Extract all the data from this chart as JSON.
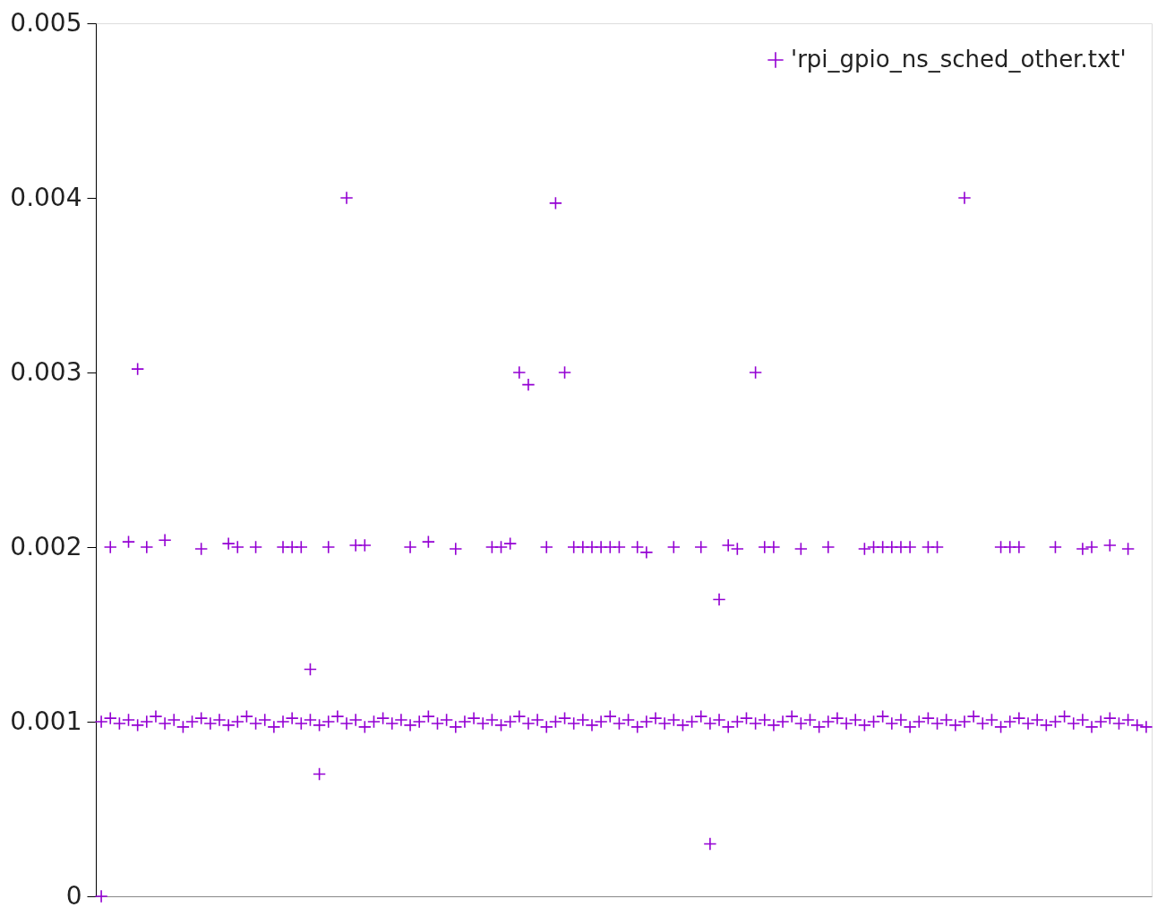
{
  "chart_data": {
    "type": "scatter",
    "categories": [
      null,
      null,
      null,
      null,
      null,
      null,
      null,
      null,
      null,
      null,
      null,
      null,
      null,
      null,
      null,
      null,
      null,
      null,
      null,
      null,
      null,
      null,
      null,
      null,
      null,
      null,
      null,
      null,
      null,
      null,
      null,
      null,
      null,
      null,
      null,
      null,
      null,
      null,
      null,
      null,
      null,
      null,
      null,
      null,
      null,
      null,
      null,
      null,
      null,
      null,
      null,
      null,
      null,
      null,
      null,
      null,
      null,
      null,
      null,
      null,
      null,
      null,
      null,
      null,
      null,
      null,
      null,
      null,
      null,
      null,
      null,
      null,
      null,
      null,
      null,
      null,
      null,
      null,
      null,
      null,
      null,
      null,
      null,
      null,
      null,
      null,
      null,
      null,
      null,
      null,
      null,
      null,
      null,
      null,
      null,
      null,
      null,
      null,
      null,
      null,
      null,
      null,
      null,
      null,
      null,
      null,
      null,
      null,
      null,
      null,
      null,
      null,
      null,
      null,
      null,
      null
    ],
    "series": [
      {
        "name": "'rpi_gpio_ns_sched_other.txt'",
        "color": "#9400d3",
        "values": [
          0,
          0.002,
          null,
          0.00203,
          0.00302,
          0.002,
          null,
          0.00204,
          null,
          null,
          null,
          0.00199,
          null,
          null,
          0.00202,
          0.002,
          null,
          0.002,
          null,
          null,
          0.002,
          0.002,
          0.002,
          0.0013,
          0.0007,
          0.002,
          null,
          0.004,
          0.00201,
          0.00201,
          null,
          null,
          null,
          null,
          0.002,
          null,
          0.00203,
          null,
          null,
          0.00199,
          null,
          null,
          null,
          0.002,
          0.002,
          0.00202,
          0.003,
          0.00293,
          null,
          0.002,
          0.00397,
          0.003,
          0.002,
          0.002,
          0.002,
          0.002,
          0.002,
          0.002,
          null,
          0.002,
          0.00197,
          null,
          null,
          0.002,
          null,
          null,
          0.002,
          0.0003,
          0.0017,
          0.00201,
          0.00199,
          null,
          0.003,
          0.002,
          0.002,
          null,
          null,
          0.00199,
          null,
          null,
          0.002,
          null,
          null,
          null,
          0.00199,
          0.002,
          0.002,
          0.002,
          0.002,
          0.002,
          null,
          0.002,
          0.002,
          null,
          null,
          0.004,
          null,
          null,
          null,
          0.002,
          0.002,
          0.002,
          null,
          null,
          null,
          0.002,
          null,
          null,
          0.00199,
          0.002,
          null,
          0.00201,
          null,
          0.00199,
          null,
          null
        ]
      },
      {
        "color": "#9400d3",
        "values": [
          0.001,
          0.00102,
          0.00099,
          0.00101,
          0.00098,
          0.001,
          0.00103,
          0.00099,
          0.00101,
          0.00097,
          0.001,
          0.00102,
          0.00099,
          0.00101,
          0.00098,
          0.001,
          0.00103,
          0.00099,
          0.00101,
          0.00097,
          0.001,
          0.00102,
          0.00099,
          0.00101,
          0.00098,
          0.001,
          0.00103,
          0.00099,
          0.00101,
          0.00097,
          0.001,
          0.00102,
          0.00099,
          0.00101,
          0.00098,
          0.001,
          0.00103,
          0.00099,
          0.00101,
          0.00097,
          0.001,
          0.00102,
          0.00099,
          0.00101,
          0.00098,
          0.001,
          0.00103,
          0.00099,
          0.00101,
          0.00097,
          0.001,
          0.00102,
          0.00099,
          0.00101,
          0.00098,
          0.001,
          0.00103,
          0.00099,
          0.00101,
          0.00097,
          0.001,
          0.00102,
          0.00099,
          0.00101,
          0.00098,
          0.001,
          0.00103,
          0.00099,
          0.00101,
          0.00097,
          0.001,
          0.00102,
          0.00099,
          0.00101,
          0.00098,
          0.001,
          0.00103,
          0.00099,
          0.00101,
          0.00097,
          0.001,
          0.00102,
          0.00099,
          0.00101,
          0.00098,
          0.001,
          0.00103,
          0.00099,
          0.00101,
          0.00097,
          0.001,
          0.00102,
          0.00099,
          0.00101,
          0.00098,
          0.001,
          0.00103,
          0.00099,
          0.00101,
          0.00097,
          0.001,
          0.00102,
          0.00099,
          0.00101,
          0.00098,
          0.001,
          0.00103,
          0.00099,
          0.00101,
          0.00097,
          0.001,
          0.00102,
          0.00099,
          0.00101,
          0.00098,
          0.00097
        ]
      }
    ],
    "ylim": [
      0,
      0.005
    ],
    "yticks": [
      0,
      0.001,
      0.002,
      0.003,
      0.004,
      0.005
    ],
    "tick_labels": "y",
    "grid": false,
    "legend": "top right",
    "marker": "cross"
  }
}
